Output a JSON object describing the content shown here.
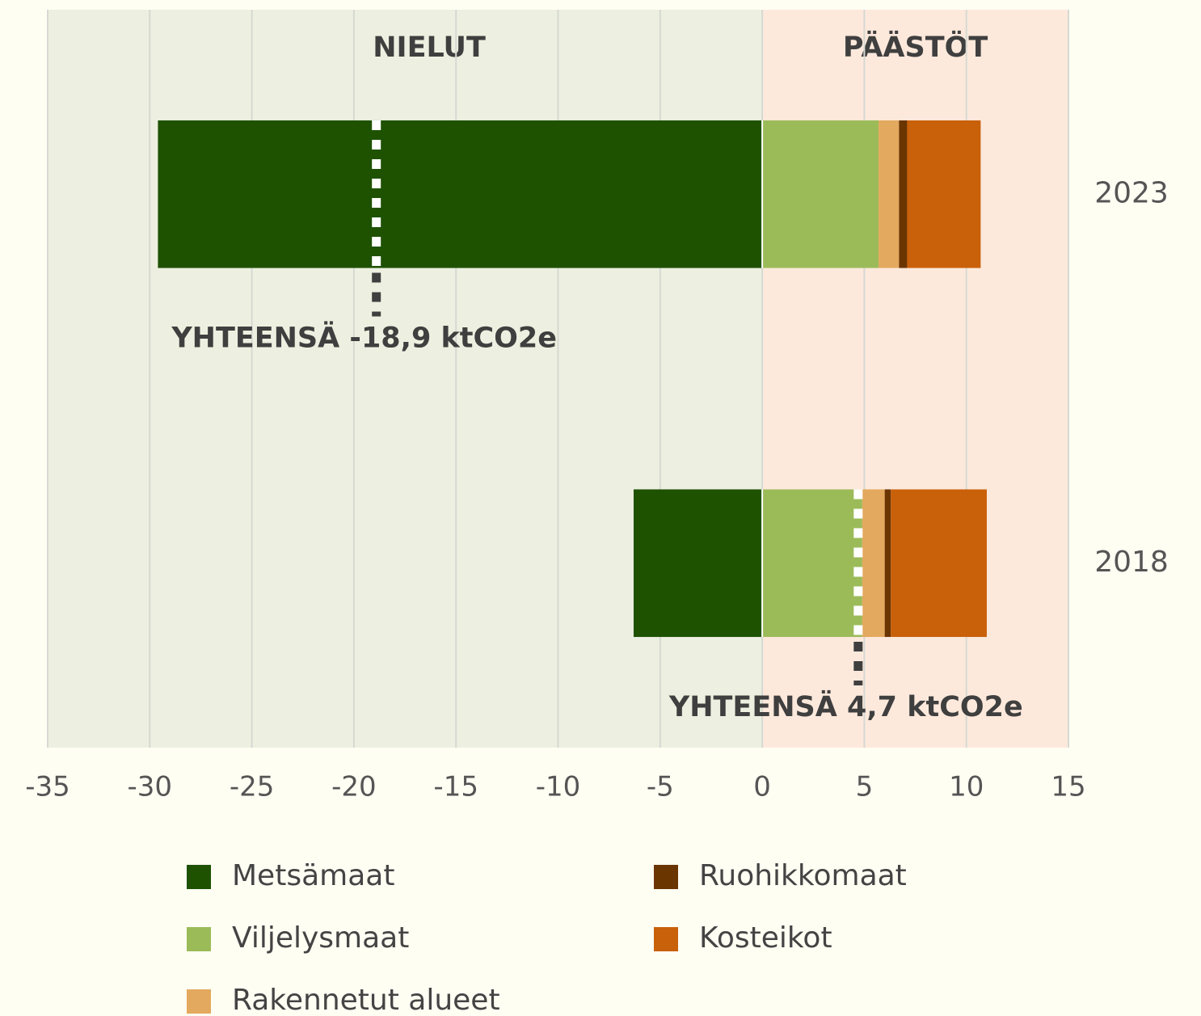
{
  "chart_data": {
    "type": "stacked_barh",
    "categories": [
      "2023",
      "2018"
    ],
    "series": [
      {
        "name": "Metsämaat",
        "color": "#1e5200",
        "values": [
          -29.6,
          -6.3
        ]
      },
      {
        "name": "Viljelysmaat",
        "color": "#9bbb59",
        "values": [
          5.7,
          4.9
        ]
      },
      {
        "name": "Rakennetut alueet",
        "color": "#e3a95e",
        "values": [
          1.0,
          1.1
        ]
      },
      {
        "name": "Ruohikkomaat",
        "color": "#6b3500",
        "values": [
          0.4,
          0.3
        ]
      },
      {
        "name": "Kosteikot",
        "color": "#c9600a",
        "values": [
          3.6,
          4.7
        ]
      }
    ],
    "xlim": [
      -35,
      15
    ],
    "xticks": [
      -35,
      -30,
      -25,
      -20,
      -15,
      -10,
      -5,
      0,
      5,
      10,
      15
    ],
    "grid": true,
    "region_labels": [
      "NIELUT",
      "PÄÄSTÖT"
    ],
    "annotations": [
      "YHTEENSÄ -18,9 ktCO2e",
      "YHTEENSÄ 4,7 ktCO2e"
    ]
  }
}
